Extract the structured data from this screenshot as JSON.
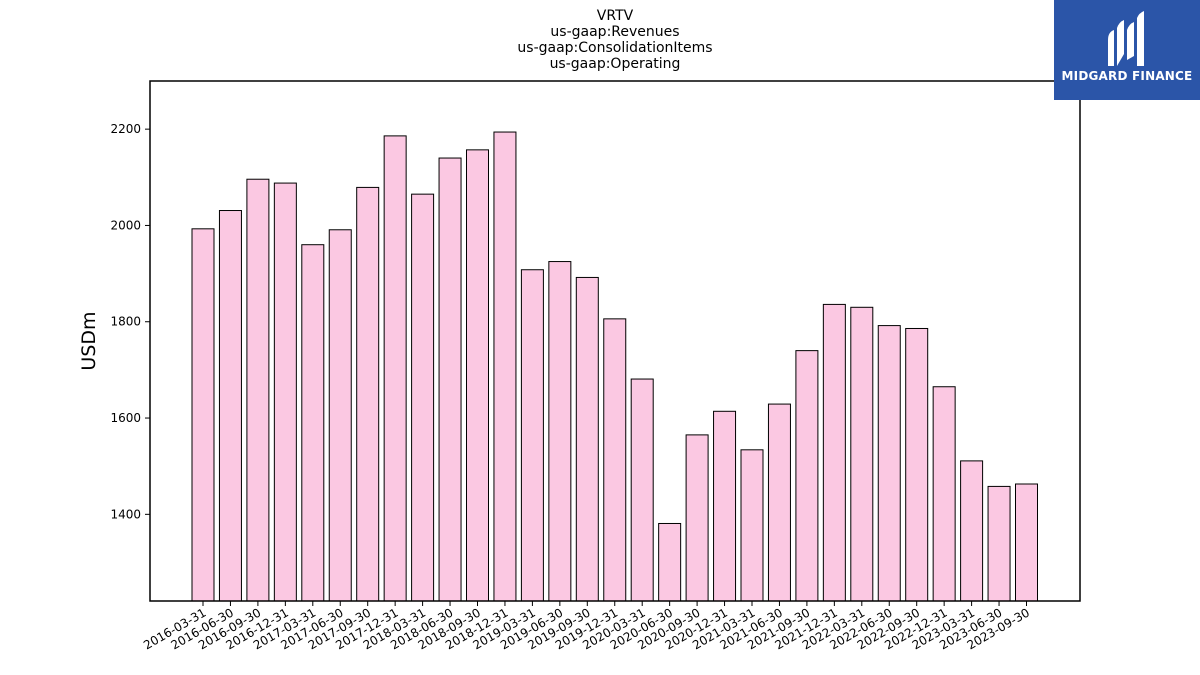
{
  "chart_data": {
    "type": "bar",
    "title_lines": [
      "VRTV",
      "us-gaap:Revenues",
      "us-gaap:ConsolidationItems",
      "us-gaap:Operating"
    ],
    "ylabel": "USDm",
    "xlabel": "",
    "ylim": [
      1220,
      2300
    ],
    "yticks": [
      1400,
      1600,
      1800,
      2000,
      2200
    ],
    "bar_color": "#fbc8e2",
    "bar_edge_color": "#000000",
    "grid": false,
    "categories": [
      "2016-03-31",
      "2016-06-30",
      "2016-09-30",
      "2016-12-31",
      "2017-03-31",
      "2017-06-30",
      "2017-09-30",
      "2017-12-31",
      "2018-03-31",
      "2018-06-30",
      "2018-09-30",
      "2018-12-31",
      "2019-03-31",
      "2019-06-30",
      "2019-09-30",
      "2019-12-31",
      "2020-03-31",
      "2020-06-30",
      "2020-09-30",
      "2020-12-31",
      "2021-03-31",
      "2021-06-30",
      "2021-09-30",
      "2021-12-31",
      "2022-03-31",
      "2022-06-30",
      "2022-09-30",
      "2022-12-31",
      "2023-03-31",
      "2023-06-30",
      "2023-09-30"
    ],
    "values": [
      1993,
      2031,
      2096,
      2088,
      1960,
      1991,
      2079,
      2186,
      2065,
      2140,
      2157,
      2194,
      1908,
      1925,
      1892,
      1806,
      1681,
      1381,
      1565,
      1614,
      1534,
      1629,
      1740,
      1836,
      1830,
      1792,
      1786,
      1665,
      1511,
      1458,
      1463
    ]
  },
  "logo": {
    "text": "MIDGARD FINANCE",
    "background": "#2b55a8",
    "icon": "midgard-m-logo-icon"
  }
}
